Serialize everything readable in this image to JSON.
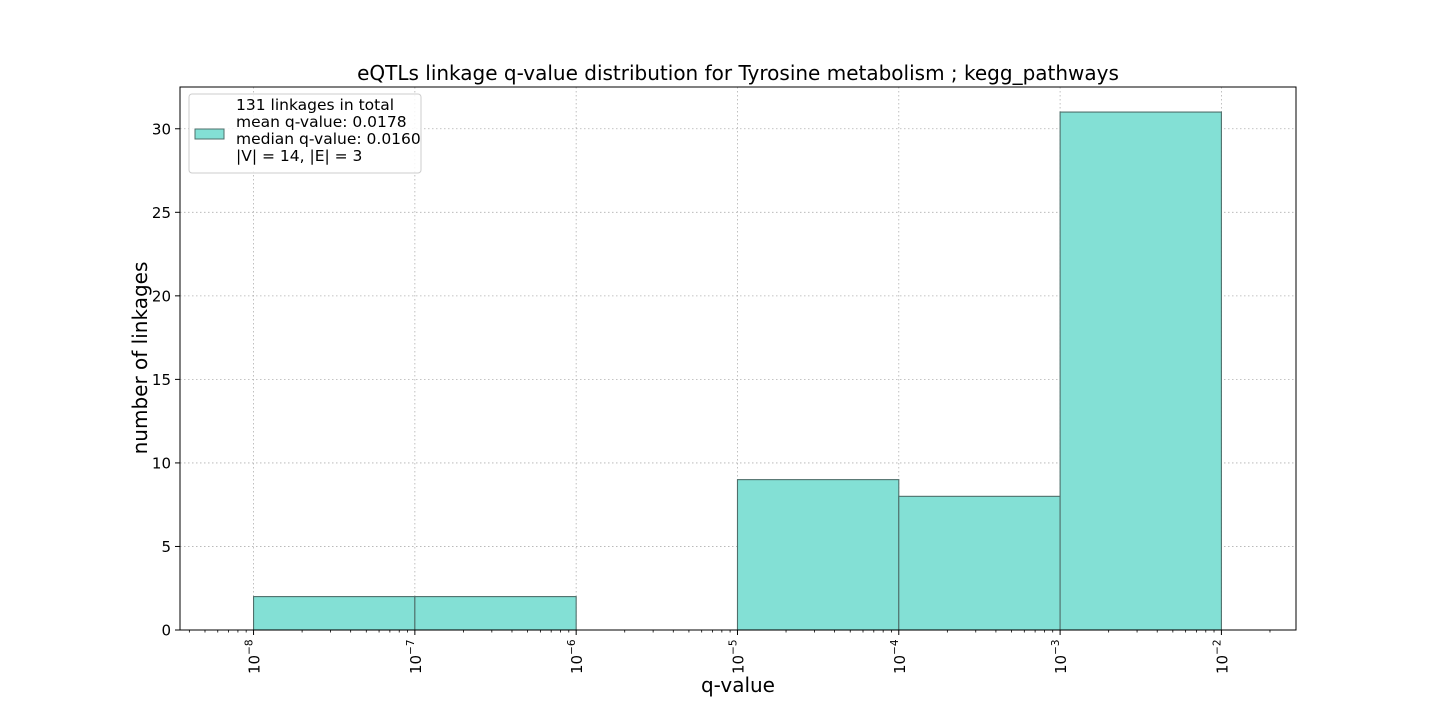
{
  "chart_data": {
    "type": "bar",
    "title": "eQTLs linkage q-value distribution for Tyrosine metabolism ; kegg_pathways",
    "xlabel": "q-value",
    "ylabel": "number of linkages",
    "x_scale": "log",
    "xlim": [
      3.5e-09,
      0.029
    ],
    "ylim": [
      0,
      32.5
    ],
    "x_ticks": [
      {
        "value": 1e-08,
        "base": "10",
        "exp": "−8"
      },
      {
        "value": 1e-07,
        "base": "10",
        "exp": "−7"
      },
      {
        "value": 1e-06,
        "base": "10",
        "exp": "−6"
      },
      {
        "value": 1e-05,
        "base": "10",
        "exp": "−5"
      },
      {
        "value": 0.0001,
        "base": "10",
        "exp": "−4"
      },
      {
        "value": 0.001,
        "base": "10",
        "exp": "−3"
      },
      {
        "value": 0.01,
        "base": "10",
        "exp": "−2"
      }
    ],
    "y_ticks": [
      0,
      5,
      10,
      15,
      20,
      25,
      30
    ],
    "bins": [
      {
        "lo": 1e-08,
        "hi": 1e-07,
        "count": 2
      },
      {
        "lo": 1e-07,
        "hi": 1e-06,
        "count": 2
      },
      {
        "lo": 1e-06,
        "hi": 1e-05,
        "count": 0
      },
      {
        "lo": 1e-05,
        "hi": 0.0001,
        "count": 9
      },
      {
        "lo": 0.0001,
        "hi": 0.001,
        "count": 8
      },
      {
        "lo": 0.001,
        "hi": 0.01,
        "count": 31
      }
    ],
    "bar_color": "#83e0d5",
    "bar_edge_color": "#4f6f6b",
    "grid": true,
    "legend_placement": "top-left",
    "legend_lines": [
      "131 linkages in total",
      "mean q-value: 0.0178",
      "median q-value: 0.0160",
      "|V| = 14, |E| = 3"
    ]
  }
}
